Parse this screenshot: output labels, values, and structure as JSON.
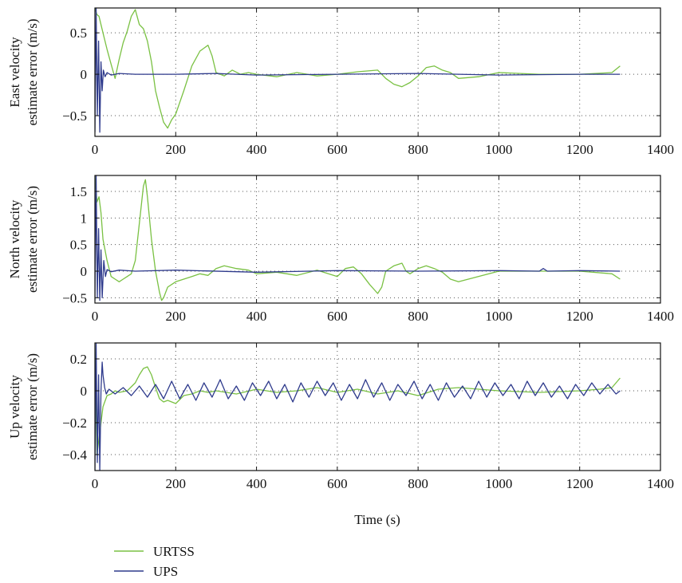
{
  "figure": {
    "xlabel": "Time (s)",
    "legend": [
      "URTSS",
      "UPS"
    ],
    "colors": {
      "URTSS": "#7ac143",
      "UPS": "#2e3a8c"
    }
  },
  "chart_data": [
    {
      "type": "line",
      "title": "",
      "xlabel": "",
      "ylabel": [
        "East velocity",
        "estimate error (m/s)"
      ],
      "xlim": [
        0,
        1400
      ],
      "ylim": [
        -0.75,
        0.8
      ],
      "xticks": [
        0,
        200,
        400,
        600,
        800,
        1000,
        1200,
        1400
      ],
      "yticks": [
        -0.5,
        0,
        0.5
      ],
      "ytick_labels": [
        "−0.5",
        "0",
        "0.5"
      ],
      "grid": true,
      "series": [
        {
          "name": "URTSS",
          "x": [
            0,
            5,
            10,
            15,
            20,
            30,
            40,
            50,
            60,
            70,
            80,
            90,
            100,
            110,
            120,
            130,
            140,
            150,
            160,
            170,
            180,
            190,
            200,
            220,
            240,
            260,
            280,
            290,
            300,
            320,
            340,
            360,
            380,
            400,
            450,
            500,
            550,
            600,
            650,
            700,
            720,
            740,
            760,
            780,
            800,
            820,
            840,
            860,
            880,
            900,
            950,
            1000,
            1100,
            1200,
            1280,
            1300
          ],
          "y": [
            0.8,
            0.72,
            0.7,
            0.6,
            0.5,
            0.3,
            0.12,
            -0.05,
            0.18,
            0.38,
            0.52,
            0.7,
            0.78,
            0.6,
            0.55,
            0.4,
            0.15,
            -0.2,
            -0.4,
            -0.58,
            -0.65,
            -0.55,
            -0.48,
            -0.2,
            0.1,
            0.28,
            0.35,
            0.22,
            0.02,
            -0.02,
            0.05,
            0.0,
            0.02,
            0.0,
            -0.03,
            0.02,
            -0.02,
            0.0,
            0.03,
            0.05,
            -0.05,
            -0.12,
            -0.15,
            -0.1,
            -0.02,
            0.08,
            0.1,
            0.05,
            0.02,
            -0.05,
            -0.03,
            0.02,
            0.0,
            0.0,
            0.02,
            0.1
          ]
        },
        {
          "name": "UPS",
          "x": [
            0,
            3,
            6,
            9,
            12,
            15,
            18,
            21,
            25,
            30,
            40,
            60,
            100,
            200,
            300,
            400,
            600,
            800,
            1000,
            1200,
            1300
          ],
          "y": [
            -0.7,
            0.8,
            -0.5,
            0.4,
            -0.7,
            0.15,
            -0.2,
            0.05,
            -0.03,
            0.02,
            -0.01,
            0.01,
            0.0,
            0.0,
            0.01,
            -0.01,
            0.0,
            0.01,
            -0.01,
            0.0,
            0.0
          ]
        }
      ]
    },
    {
      "type": "line",
      "title": "",
      "xlabel": "",
      "ylabel": [
        "North velocity",
        "estimate error (m/s)"
      ],
      "xlim": [
        0,
        1400
      ],
      "ylim": [
        -0.6,
        1.8
      ],
      "xticks": [
        0,
        200,
        400,
        600,
        800,
        1000,
        1200,
        1400
      ],
      "yticks": [
        -0.5,
        0,
        0.5,
        1,
        1.5
      ],
      "ytick_labels": [
        "−0.5",
        "0",
        "0.5",
        "1",
        "1.5"
      ],
      "grid": true,
      "series": [
        {
          "name": "URTSS",
          "x": [
            0,
            5,
            10,
            15,
            20,
            30,
            40,
            50,
            60,
            70,
            80,
            90,
            100,
            110,
            120,
            125,
            130,
            140,
            150,
            160,
            165,
            170,
            180,
            190,
            200,
            220,
            240,
            260,
            280,
            300,
            320,
            350,
            380,
            400,
            450,
            500,
            550,
            600,
            620,
            640,
            660,
            680,
            700,
            710,
            720,
            740,
            760,
            770,
            780,
            800,
            820,
            840,
            860,
            880,
            900,
            1000,
            1100,
            1200,
            1280,
            1300
          ],
          "y": [
            1.8,
            1.3,
            1.4,
            1.1,
            0.6,
            0.2,
            -0.1,
            -0.15,
            -0.2,
            -0.15,
            -0.1,
            -0.05,
            0.2,
            0.9,
            1.6,
            1.72,
            1.4,
            0.6,
            0.0,
            -0.4,
            -0.55,
            -0.5,
            -0.3,
            -0.25,
            -0.2,
            -0.15,
            -0.1,
            -0.05,
            -0.08,
            0.05,
            0.1,
            0.05,
            0.02,
            -0.05,
            -0.02,
            -0.08,
            0.02,
            -0.1,
            0.05,
            0.08,
            -0.05,
            -0.25,
            -0.42,
            -0.3,
            0.0,
            0.1,
            0.15,
            0.0,
            -0.05,
            0.05,
            0.1,
            0.05,
            -0.02,
            -0.15,
            -0.2,
            0.0,
            0.0,
            0.0,
            -0.05,
            -0.15
          ]
        },
        {
          "name": "UPS",
          "x": [
            0,
            3,
            6,
            9,
            12,
            15,
            18,
            22,
            26,
            30,
            40,
            60,
            100,
            200,
            400,
            600,
            800,
            1000,
            1100,
            1110,
            1120,
            1200,
            1300
          ],
          "y": [
            -0.55,
            1.8,
            -0.5,
            0.8,
            -0.55,
            0.4,
            -0.5,
            0.2,
            -0.1,
            0.03,
            -0.01,
            0.02,
            0.0,
            0.02,
            -0.02,
            0.01,
            0.0,
            0.01,
            0.0,
            0.05,
            0.0,
            0.01,
            0.0
          ]
        }
      ]
    },
    {
      "type": "line",
      "title": "",
      "xlabel": "Time (s)",
      "ylabel": [
        "Up velocity",
        "estimate error (m/s)"
      ],
      "xlim": [
        0,
        1400
      ],
      "ylim": [
        -0.5,
        0.3
      ],
      "xticks": [
        0,
        200,
        400,
        600,
        800,
        1000,
        1200,
        1400
      ],
      "yticks": [
        -0.4,
        -0.2,
        0,
        0.2
      ],
      "ytick_labels": [
        "−0.4",
        "−0.2",
        "0",
        "0.2"
      ],
      "grid": true,
      "series": [
        {
          "name": "URTSS",
          "x": [
            0,
            5,
            10,
            15,
            20,
            30,
            40,
            50,
            60,
            80,
            100,
            110,
            120,
            130,
            140,
            150,
            160,
            170,
            180,
            200,
            220,
            240,
            260,
            280,
            300,
            350,
            400,
            450,
            500,
            550,
            600,
            650,
            700,
            750,
            800,
            850,
            900,
            1000,
            1100,
            1200,
            1250,
            1280,
            1300
          ],
          "y": [
            0.3,
            -0.4,
            -0.3,
            -0.2,
            -0.1,
            -0.03,
            -0.02,
            0.0,
            -0.01,
            0.0,
            0.05,
            0.1,
            0.14,
            0.15,
            0.1,
            0.02,
            -0.05,
            -0.07,
            -0.06,
            -0.08,
            -0.03,
            -0.02,
            0.0,
            -0.01,
            0.0,
            -0.02,
            0.01,
            -0.01,
            0.0,
            0.02,
            -0.01,
            0.01,
            -0.02,
            0.0,
            -0.03,
            0.01,
            0.02,
            0.0,
            -0.01,
            0.0,
            0.01,
            0.02,
            0.08
          ]
        },
        {
          "name": "UPS",
          "x": [
            0,
            3,
            6,
            9,
            12,
            15,
            18,
            20,
            24,
            28,
            35,
            50,
            70,
            90,
            110,
            130,
            150,
            170,
            190,
            210,
            230,
            250,
            270,
            290,
            310,
            330,
            350,
            370,
            390,
            410,
            430,
            450,
            470,
            490,
            510,
            530,
            550,
            570,
            590,
            610,
            630,
            650,
            670,
            690,
            710,
            730,
            750,
            770,
            790,
            810,
            830,
            850,
            870,
            890,
            910,
            930,
            950,
            970,
            990,
            1010,
            1030,
            1050,
            1070,
            1090,
            1110,
            1130,
            1150,
            1170,
            1190,
            1210,
            1230,
            1250,
            1270,
            1290,
            1300
          ],
          "y": [
            -0.5,
            0.3,
            -0.45,
            0.1,
            -0.5,
            0.0,
            0.18,
            0.1,
            0.02,
            -0.02,
            0.01,
            -0.02,
            0.02,
            -0.03,
            0.03,
            -0.04,
            0.04,
            -0.05,
            0.06,
            -0.05,
            0.04,
            -0.06,
            0.05,
            -0.04,
            0.07,
            -0.05,
            0.03,
            -0.06,
            0.05,
            -0.03,
            0.06,
            -0.05,
            0.04,
            -0.07,
            0.05,
            -0.04,
            0.06,
            -0.03,
            0.05,
            -0.06,
            0.04,
            -0.05,
            0.07,
            -0.04,
            0.05,
            -0.06,
            0.04,
            -0.03,
            0.06,
            -0.05,
            0.04,
            -0.06,
            0.05,
            -0.04,
            0.03,
            -0.05,
            0.06,
            -0.04,
            0.05,
            -0.03,
            0.04,
            -0.05,
            0.06,
            -0.03,
            0.05,
            -0.04,
            0.03,
            -0.05,
            0.04,
            -0.03,
            0.05,
            -0.02,
            0.04,
            -0.02,
            0.0
          ]
        }
      ]
    }
  ]
}
